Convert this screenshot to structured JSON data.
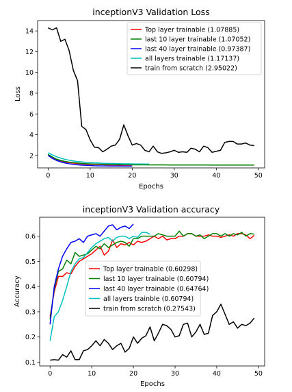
{
  "chart_data": [
    {
      "type": "line",
      "title": "inceptionV3 Validation Loss",
      "xlabel": "Epochs",
      "ylabel": "Loss",
      "xlim": [
        -2.5,
        51.5
      ],
      "ylim": [
        0.8,
        15.0
      ],
      "xticks": [
        0,
        10,
        20,
        30,
        40,
        50
      ],
      "yticks": [
        2,
        4,
        6,
        8,
        10,
        12,
        14
      ],
      "legend_position": "top-right",
      "series": [
        {
          "name": "Top layer trainable (1.07885)",
          "color": "#ff0000",
          "x": [
            0,
            1,
            2,
            3,
            4,
            5,
            6,
            7,
            8,
            9,
            10,
            11,
            12,
            13,
            14,
            15,
            16,
            17,
            18,
            19,
            20
          ],
          "values": [
            2.05,
            1.75,
            1.58,
            1.46,
            1.38,
            1.31,
            1.26,
            1.22,
            1.19,
            1.16,
            1.14,
            1.13,
            1.12,
            1.11,
            1.1,
            1.09,
            1.09,
            1.08,
            1.08,
            1.08,
            1.08
          ]
        },
        {
          "name": "last 10 layer trainable (1.07052)",
          "color": "#008000",
          "x": [
            0,
            1,
            2,
            3,
            4,
            5,
            6,
            7,
            8,
            9,
            10,
            11,
            12,
            13,
            14,
            15,
            16,
            17,
            18,
            19,
            20,
            21,
            22,
            23,
            24,
            25,
            26,
            27,
            28,
            29,
            30,
            31,
            32,
            33,
            34,
            35,
            36,
            37,
            38,
            39,
            40,
            41,
            42,
            43,
            44,
            45,
            46,
            47,
            48,
            49
          ],
          "values": [
            2.1,
            1.85,
            1.65,
            1.52,
            1.43,
            1.36,
            1.31,
            1.27,
            1.24,
            1.21,
            1.19,
            1.17,
            1.16,
            1.15,
            1.14,
            1.13,
            1.12,
            1.12,
            1.11,
            1.11,
            1.1,
            1.1,
            1.1,
            1.1,
            1.09,
            1.09,
            1.09,
            1.09,
            1.09,
            1.08,
            1.08,
            1.08,
            1.08,
            1.08,
            1.08,
            1.08,
            1.08,
            1.08,
            1.08,
            1.07,
            1.07,
            1.07,
            1.07,
            1.07,
            1.07,
            1.07,
            1.07,
            1.07,
            1.07,
            1.07
          ]
        },
        {
          "name": "last 40 layer trainable (0.97387)",
          "color": "#0000ff",
          "x": [
            0,
            1,
            2,
            3,
            4,
            5,
            6,
            7,
            8,
            9,
            10,
            11,
            12,
            13,
            14,
            15,
            16,
            17,
            18,
            19,
            20
          ],
          "values": [
            2.0,
            1.72,
            1.52,
            1.38,
            1.28,
            1.2,
            1.14,
            1.1,
            1.07,
            1.05,
            1.03,
            1.01,
            1.0,
            0.99,
            0.99,
            0.98,
            0.98,
            0.98,
            0.97,
            0.97,
            0.97
          ]
        },
        {
          "name": "all layers trainable (1.17137)",
          "color": "#00bfbf",
          "x": [
            0,
            1,
            2,
            3,
            4,
            5,
            6,
            7,
            8,
            9,
            10,
            11,
            12,
            13,
            14,
            15,
            16,
            17,
            18,
            19,
            20,
            21,
            22,
            23,
            24
          ],
          "values": [
            2.25,
            2.05,
            1.88,
            1.74,
            1.63,
            1.54,
            1.47,
            1.42,
            1.38,
            1.34,
            1.31,
            1.29,
            1.27,
            1.25,
            1.24,
            1.23,
            1.22,
            1.21,
            1.2,
            1.2,
            1.19,
            1.18,
            1.18,
            1.17,
            1.17
          ]
        },
        {
          "name": "train from scratch (2.95022)",
          "color": "#000000",
          "x": [
            0,
            1,
            2,
            3,
            4,
            5,
            6,
            7,
            8,
            9,
            10,
            11,
            12,
            13,
            14,
            15,
            16,
            17,
            18,
            19,
            20,
            21,
            22,
            23,
            24,
            25,
            26,
            27,
            28,
            29,
            30,
            31,
            32,
            33,
            34,
            35,
            36,
            37,
            38,
            39,
            40,
            41,
            42,
            43,
            44,
            45,
            46,
            47,
            48,
            49
          ],
          "values": [
            14.3,
            14.1,
            14.3,
            13.0,
            13.2,
            12.1,
            10.2,
            9.2,
            4.8,
            4.5,
            3.5,
            2.8,
            2.75,
            2.35,
            2.6,
            2.9,
            3.0,
            3.55,
            4.95,
            3.9,
            3.0,
            3.15,
            3.0,
            2.5,
            2.35,
            2.9,
            2.35,
            2.2,
            2.25,
            2.35,
            2.5,
            2.3,
            2.35,
            2.3,
            2.7,
            2.6,
            2.35,
            2.9,
            2.75,
            2.3,
            2.4,
            2.5,
            3.25,
            3.35,
            3.35,
            3.1,
            3.1,
            3.2,
            3.0,
            2.95
          ]
        }
      ]
    },
    {
      "type": "line",
      "title": "inceptionV3 Validation accuracy",
      "xlabel": "Epochs",
      "ylabel": "Accuracy",
      "xlim": [
        -2.5,
        51.5
      ],
      "ylim": [
        0.085,
        0.675
      ],
      "xticks": [
        0,
        10,
        20,
        30,
        40,
        50
      ],
      "yticks": [
        0.1,
        0.2,
        0.3,
        0.4,
        0.5,
        0.6
      ],
      "legend_position": "center",
      "series": [
        {
          "name": "Top layer trainable (0.60298)",
          "color": "#ff0000",
          "x": [
            0,
            1,
            2,
            3,
            4,
            5,
            6,
            7,
            8,
            9,
            10,
            11,
            12,
            13,
            14,
            15,
            16,
            17,
            18,
            19,
            20,
            21,
            22,
            23,
            24,
            25,
            26,
            27,
            28,
            29,
            30,
            31,
            32,
            33,
            34,
            35,
            36,
            37,
            38,
            39,
            40,
            41,
            42,
            43,
            44,
            45,
            46,
            47,
            48,
            49
          ],
          "values": [
            0.28,
            0.38,
            0.44,
            0.44,
            0.455,
            0.45,
            0.48,
            0.5,
            0.51,
            0.52,
            0.53,
            0.545,
            0.56,
            0.525,
            0.54,
            0.585,
            0.555,
            0.57,
            0.565,
            0.575,
            0.565,
            0.58,
            0.575,
            0.58,
            0.59,
            0.6,
            0.59,
            0.6,
            0.585,
            0.59,
            0.59,
            0.6,
            0.6,
            0.61,
            0.61,
            0.6,
            0.6,
            0.6,
            0.605,
            0.6,
            0.6,
            0.595,
            0.6,
            0.605,
            0.6,
            0.61,
            0.61,
            0.605,
            0.59,
            0.603
          ]
        },
        {
          "name": "last 10 layer trainable (0.60794)",
          "color": "#008000",
          "x": [
            0,
            1,
            2,
            3,
            4,
            5,
            6,
            7,
            8,
            9,
            10,
            11,
            12,
            13,
            14,
            15,
            16,
            17,
            18,
            19,
            20,
            21,
            22,
            23,
            24,
            25,
            26,
            27,
            28,
            29,
            30,
            31,
            32,
            33,
            34,
            35,
            36,
            37,
            38,
            39,
            40,
            41,
            42,
            43,
            44,
            45,
            46,
            47,
            48,
            49
          ],
          "values": [
            0.27,
            0.39,
            0.46,
            0.47,
            0.505,
            0.49,
            0.535,
            0.52,
            0.525,
            0.53,
            0.545,
            0.56,
            0.55,
            0.57,
            0.555,
            0.565,
            0.575,
            0.58,
            0.575,
            0.56,
            0.59,
            0.59,
            0.6,
            0.6,
            0.6,
            0.6,
            0.61,
            0.605,
            0.6,
            0.6,
            0.6,
            0.62,
            0.6,
            0.61,
            0.61,
            0.6,
            0.605,
            0.59,
            0.6,
            0.61,
            0.61,
            0.6,
            0.61,
            0.6,
            0.61,
            0.605,
            0.615,
            0.6,
            0.61,
            0.608
          ]
        },
        {
          "name": "last 40 layer trainable (0.64764)",
          "color": "#0000ff",
          "x": [
            0,
            1,
            2,
            3,
            4,
            5,
            6,
            7,
            8,
            9,
            10,
            11,
            12,
            13,
            14,
            15,
            16,
            17,
            18,
            19,
            20
          ],
          "values": [
            0.25,
            0.4,
            0.47,
            0.52,
            0.55,
            0.575,
            0.58,
            0.59,
            0.575,
            0.6,
            0.605,
            0.61,
            0.6,
            0.62,
            0.64,
            0.645,
            0.625,
            0.635,
            0.64,
            0.63,
            0.648
          ]
        },
        {
          "name": "all layers trainble (0.60794)",
          "color": "#00bfbf",
          "x": [
            0,
            1,
            2,
            3,
            4,
            5,
            6,
            7,
            8,
            9,
            10,
            11,
            12,
            13,
            14,
            15,
            16,
            17,
            18,
            19,
            20,
            21,
            22,
            23,
            24
          ],
          "values": [
            0.185,
            0.28,
            0.3,
            0.345,
            0.4,
            0.46,
            0.49,
            0.51,
            0.515,
            0.535,
            0.555,
            0.57,
            0.58,
            0.59,
            0.595,
            0.58,
            0.595,
            0.6,
            0.6,
            0.59,
            0.6,
            0.595,
            0.615,
            0.615,
            0.608
          ]
        },
        {
          "name": "train from scratch (0.27543)",
          "color": "#000000",
          "x": [
            0,
            1,
            2,
            3,
            4,
            5,
            6,
            7,
            8,
            9,
            10,
            11,
            12,
            13,
            14,
            15,
            16,
            17,
            18,
            19,
            20,
            21,
            22,
            23,
            24,
            25,
            26,
            27,
            28,
            29,
            30,
            31,
            32,
            33,
            34,
            35,
            36,
            37,
            38,
            39,
            40,
            41,
            42,
            43,
            44,
            45,
            46,
            47,
            48,
            49
          ],
          "values": [
            0.108,
            0.11,
            0.108,
            0.13,
            0.12,
            0.145,
            0.11,
            0.11,
            0.145,
            0.15,
            0.165,
            0.185,
            0.165,
            0.19,
            0.175,
            0.15,
            0.165,
            0.175,
            0.14,
            0.155,
            0.2,
            0.175,
            0.195,
            0.205,
            0.24,
            0.185,
            0.215,
            0.25,
            0.245,
            0.23,
            0.2,
            0.205,
            0.25,
            0.255,
            0.2,
            0.22,
            0.25,
            0.21,
            0.215,
            0.285,
            0.3,
            0.33,
            0.29,
            0.25,
            0.26,
            0.235,
            0.25,
            0.245,
            0.255,
            0.275
          ]
        }
      ]
    }
  ]
}
